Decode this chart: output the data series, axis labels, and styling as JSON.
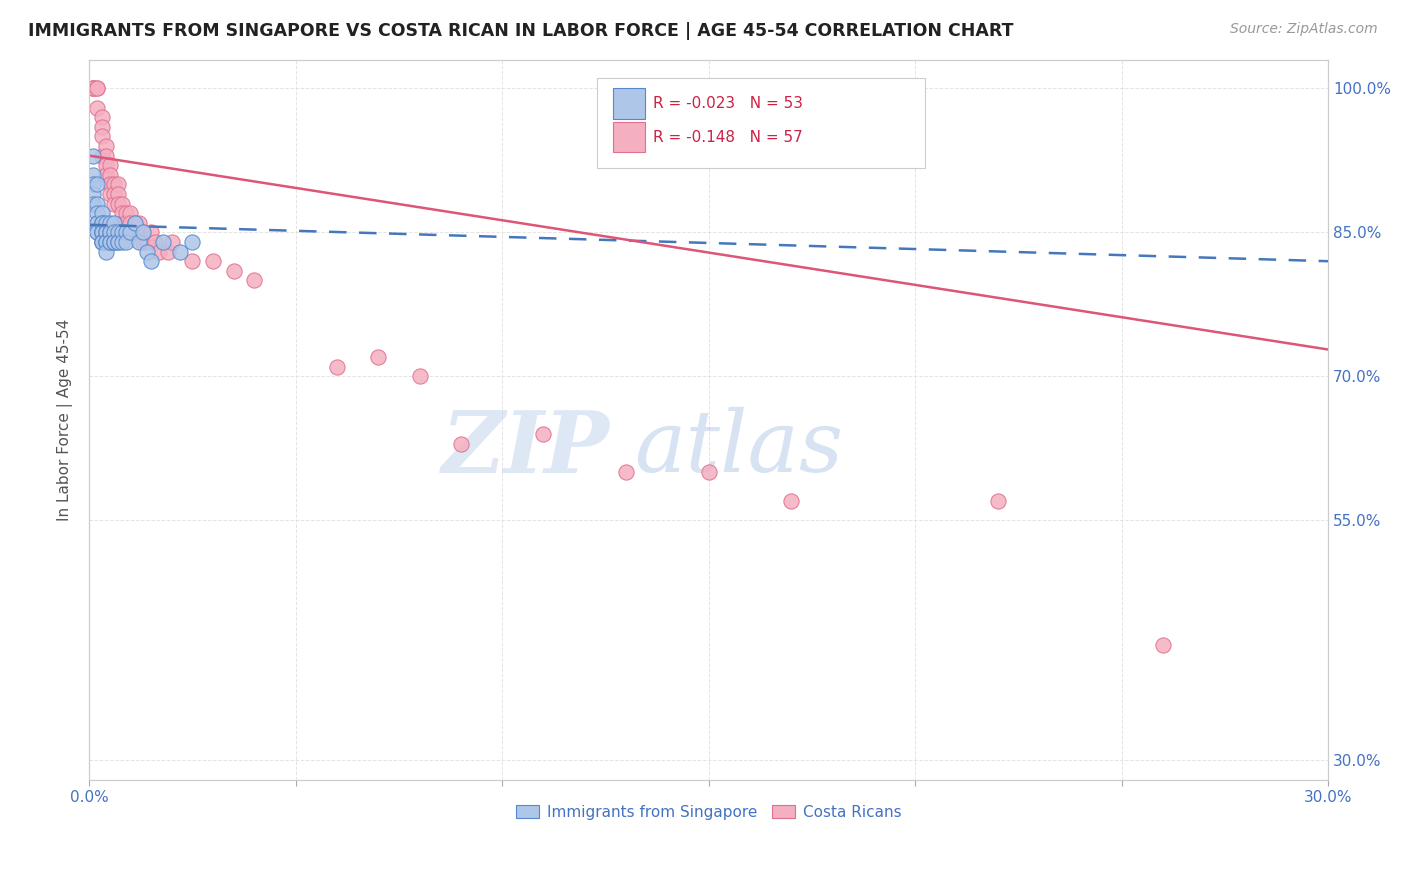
{
  "title": "IMMIGRANTS FROM SINGAPORE VS COSTA RICAN IN LABOR FORCE | AGE 45-54 CORRELATION CHART",
  "source": "Source: ZipAtlas.com",
  "ylabel": "In Labor Force | Age 45-54",
  "xmin": 0.0,
  "xmax": 0.3,
  "ymin": 0.28,
  "ymax": 1.03,
  "yticks": [
    0.3,
    0.55,
    0.7,
    0.85,
    1.0
  ],
  "ytick_labels": [
    "30.0%",
    "55.0%",
    "70.0%",
    "85.0%",
    "100.0%"
  ],
  "xticks": [
    0.0,
    0.05,
    0.1,
    0.15,
    0.2,
    0.25,
    0.3
  ],
  "xtick_labels": [
    "0.0%",
    "",
    "",
    "",
    "",
    "",
    "30.0%"
  ],
  "singapore_color": "#aec6e8",
  "costa_rica_color": "#f4afc0",
  "singapore_edge": "#5588cc",
  "costa_rica_edge": "#e07090",
  "trend_singapore_color": "#4477bb",
  "trend_costa_rica_color": "#dd5577",
  "R_singapore": -0.023,
  "N_singapore": 53,
  "R_costa_rica": -0.148,
  "N_costa_rica": 57,
  "watermark_zip": "ZIP",
  "watermark_atlas": "atlas",
  "legend_label_singapore": "Immigrants from Singapore",
  "legend_label_costa_rica": "Costa Ricans",
  "sing_trend_x0": 0.0,
  "sing_trend_y0": 0.858,
  "sing_trend_x1": 0.3,
  "sing_trend_y1": 0.82,
  "costa_trend_x0": 0.0,
  "costa_trend_y0": 0.93,
  "costa_trend_x1": 0.3,
  "costa_trend_y1": 0.728,
  "singapore_x": [
    0.001,
    0.001,
    0.001,
    0.001,
    0.001,
    0.002,
    0.002,
    0.002,
    0.002,
    0.002,
    0.002,
    0.002,
    0.003,
    0.003,
    0.003,
    0.003,
    0.003,
    0.003,
    0.003,
    0.003,
    0.003,
    0.004,
    0.004,
    0.004,
    0.004,
    0.004,
    0.004,
    0.004,
    0.005,
    0.005,
    0.005,
    0.005,
    0.005,
    0.006,
    0.006,
    0.006,
    0.006,
    0.007,
    0.007,
    0.007,
    0.008,
    0.008,
    0.009,
    0.009,
    0.01,
    0.011,
    0.012,
    0.013,
    0.014,
    0.015,
    0.018,
    0.022,
    0.025
  ],
  "singapore_y": [
    0.93,
    0.91,
    0.9,
    0.89,
    0.88,
    0.9,
    0.88,
    0.87,
    0.86,
    0.86,
    0.85,
    0.85,
    0.87,
    0.86,
    0.86,
    0.85,
    0.85,
    0.85,
    0.84,
    0.84,
    0.84,
    0.86,
    0.85,
    0.85,
    0.84,
    0.84,
    0.84,
    0.83,
    0.86,
    0.85,
    0.85,
    0.84,
    0.84,
    0.86,
    0.85,
    0.84,
    0.84,
    0.85,
    0.84,
    0.84,
    0.85,
    0.84,
    0.85,
    0.84,
    0.85,
    0.86,
    0.84,
    0.85,
    0.83,
    0.82,
    0.84,
    0.83,
    0.84
  ],
  "costa_rica_x": [
    0.001,
    0.001,
    0.001,
    0.002,
    0.002,
    0.002,
    0.003,
    0.003,
    0.003,
    0.003,
    0.004,
    0.004,
    0.004,
    0.004,
    0.005,
    0.005,
    0.005,
    0.005,
    0.006,
    0.006,
    0.006,
    0.007,
    0.007,
    0.007,
    0.008,
    0.008,
    0.008,
    0.009,
    0.009,
    0.01,
    0.01,
    0.01,
    0.011,
    0.011,
    0.012,
    0.013,
    0.013,
    0.014,
    0.015,
    0.016,
    0.017,
    0.019,
    0.02,
    0.025,
    0.03,
    0.035,
    0.04,
    0.06,
    0.07,
    0.08,
    0.09,
    0.11,
    0.13,
    0.15,
    0.17,
    0.22,
    0.26
  ],
  "costa_rica_y": [
    1.0,
    1.0,
    1.0,
    1.0,
    1.0,
    0.98,
    0.97,
    0.96,
    0.95,
    0.93,
    0.94,
    0.93,
    0.92,
    0.91,
    0.92,
    0.91,
    0.9,
    0.89,
    0.9,
    0.89,
    0.88,
    0.9,
    0.89,
    0.88,
    0.88,
    0.87,
    0.86,
    0.87,
    0.86,
    0.87,
    0.86,
    0.85,
    0.86,
    0.85,
    0.86,
    0.85,
    0.84,
    0.84,
    0.85,
    0.84,
    0.83,
    0.83,
    0.84,
    0.82,
    0.82,
    0.81,
    0.8,
    0.71,
    0.72,
    0.7,
    0.63,
    0.64,
    0.6,
    0.6,
    0.57,
    0.57,
    0.42
  ]
}
